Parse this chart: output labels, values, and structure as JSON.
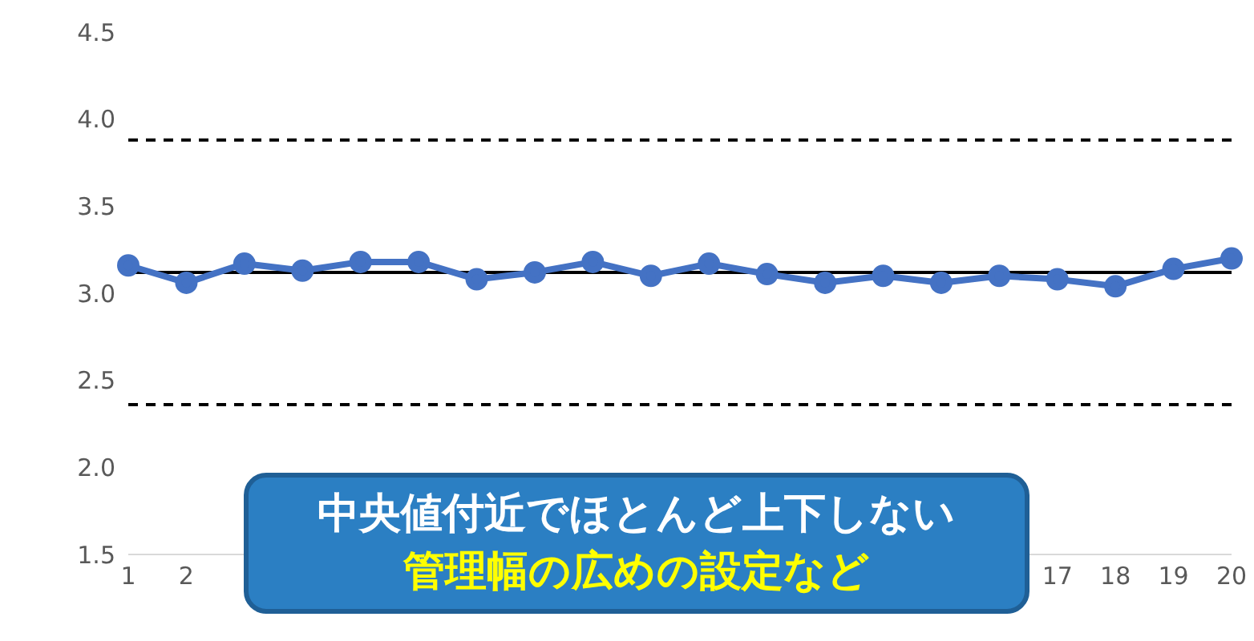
{
  "chart_data": {
    "type": "line",
    "categories": [
      "1",
      "2",
      null,
      null,
      null,
      null,
      null,
      null,
      null,
      null,
      null,
      null,
      null,
      null,
      null,
      null,
      "17",
      "18",
      "19",
      "20"
    ],
    "series": [
      {
        "color": "#4472c4",
        "values": [
          3.16,
          3.06,
          3.17,
          3.13,
          3.18,
          3.18,
          3.08,
          3.12,
          3.18,
          3.1,
          3.17,
          3.11,
          3.06,
          3.1,
          3.06,
          3.1,
          3.08,
          3.04,
          3.14,
          3.2
        ]
      }
    ],
    "ylim": [
      1.5,
      4.5
    ],
    "yticks": [
      1.5,
      {
        "value": 2,
        "label": "2.0"
      },
      2.5,
      {
        "value": 3,
        "label": "3.0"
      },
      3.5,
      {
        "value": 4,
        "label": "4.0"
      },
      4.5
    ],
    "ref_lines": [
      {
        "axis": "y",
        "value": 3.88,
        "color": "#000000",
        "line_style": "dashed"
      },
      {
        "axis": "y",
        "value": 3.12,
        "color": "#000000",
        "line_style": "solid"
      },
      {
        "axis": "y",
        "value": 2.36,
        "color": "#000000",
        "line_style": "dashed"
      }
    ],
    "annotations": [
      "中央値付近でほとんど上下しない",
      "管理幅の広めの設定など"
    ],
    "grid": false,
    "legend": false,
    "marker": "circle",
    "line_style": "solid"
  }
}
